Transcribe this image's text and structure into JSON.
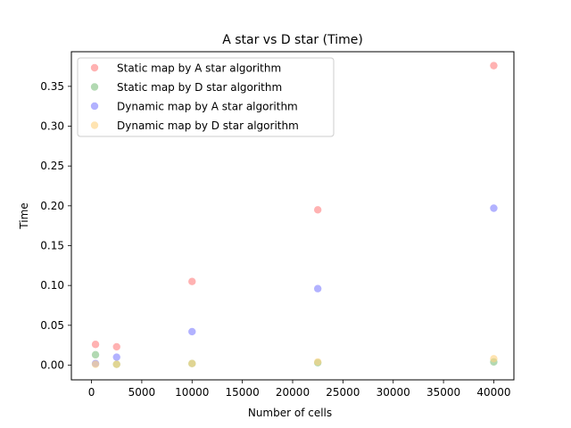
{
  "chart_data": {
    "type": "scatter",
    "title": "A star vs D star (Time)",
    "xlabel": "Number of cells",
    "ylabel": "Time",
    "xlim": [
      -2000,
      42000
    ],
    "ylim": [
      -0.0185,
      0.3935
    ],
    "xticks": [
      0,
      5000,
      10000,
      15000,
      20000,
      25000,
      30000,
      35000,
      40000
    ],
    "xtick_labels": [
      "0",
      "5000",
      "10000",
      "15000",
      "20000",
      "25000",
      "30000",
      "35000",
      "40000"
    ],
    "yticks": [
      0.0,
      0.05,
      0.1,
      0.15,
      0.2,
      0.25,
      0.3,
      0.35
    ],
    "ytick_labels": [
      "0.00",
      "0.05",
      "0.10",
      "0.15",
      "0.20",
      "0.25",
      "0.30",
      "0.35"
    ],
    "grid": false,
    "legend_position": "top-left",
    "series": [
      {
        "name": "Static map by A star algorithm",
        "color": "#ff7f7f",
        "points": [
          {
            "x": 400,
            "y": 0.026
          },
          {
            "x": 2500,
            "y": 0.023
          },
          {
            "x": 10000,
            "y": 0.105
          },
          {
            "x": 22500,
            "y": 0.195
          },
          {
            "x": 40000,
            "y": 0.376
          }
        ]
      },
      {
        "name": "Static map by D star algorithm",
        "color": "#7fbf7f",
        "points": [
          {
            "x": 400,
            "y": 0.013
          },
          {
            "x": 2500,
            "y": 0.001
          },
          {
            "x": 10000,
            "y": 0.002
          },
          {
            "x": 22500,
            "y": 0.003
          },
          {
            "x": 40000,
            "y": 0.004
          }
        ]
      },
      {
        "name": "Dynamic map by A star algorithm",
        "color": "#7f7fff",
        "points": [
          {
            "x": 400,
            "y": 0.002
          },
          {
            "x": 2500,
            "y": 0.01
          },
          {
            "x": 10000,
            "y": 0.042
          },
          {
            "x": 22500,
            "y": 0.096
          },
          {
            "x": 40000,
            "y": 0.197
          }
        ]
      },
      {
        "name": "Dynamic map by D star algorithm",
        "color": "#ffd27f",
        "points": [
          {
            "x": 400,
            "y": 0.001
          },
          {
            "x": 2500,
            "y": 0.001
          },
          {
            "x": 10000,
            "y": 0.002
          },
          {
            "x": 22500,
            "y": 0.004
          },
          {
            "x": 40000,
            "y": 0.008
          }
        ]
      }
    ]
  }
}
